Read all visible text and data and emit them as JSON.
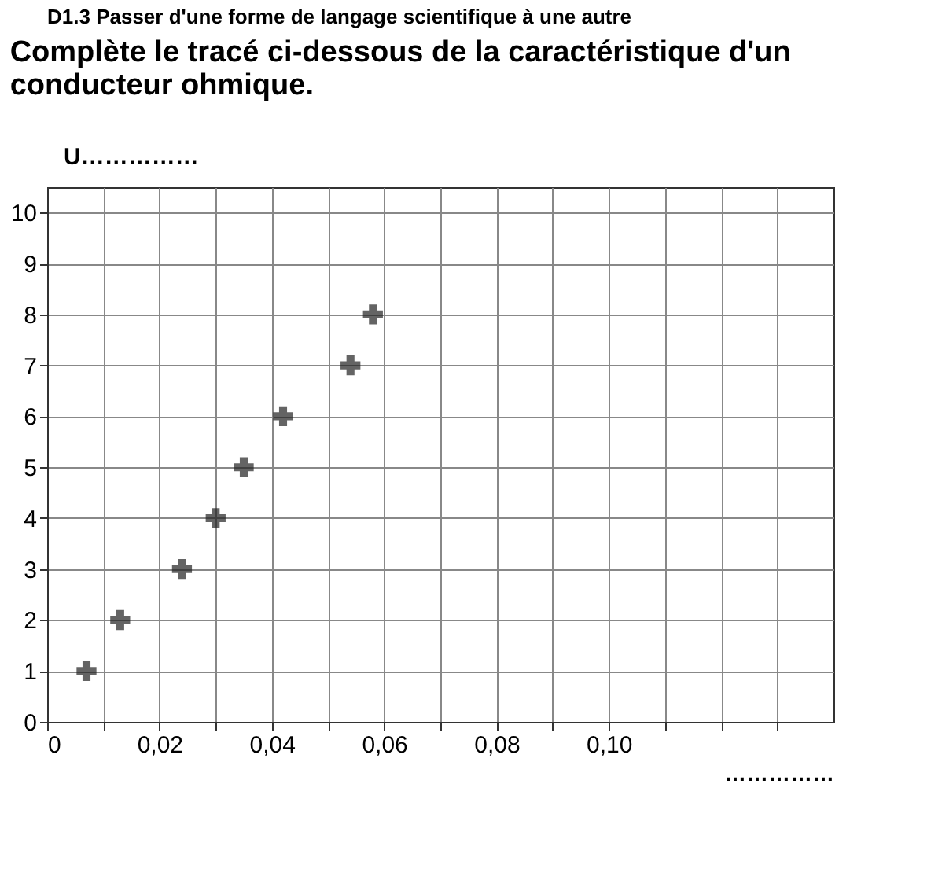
{
  "chart_data": {
    "type": "scatter",
    "title": "Complète le tracé ci-dessous de la caractéristique d'un conducteur ohmique.",
    "annotations": [
      "D1.3 Passer d'une forme de langage scientifique à une autre"
    ],
    "ylabel": "U……………",
    "xlabel": "……………",
    "x": [
      0.007,
      0.013,
      0.024,
      0.03,
      0.035,
      0.042,
      0.054,
      0.058
    ],
    "series": [
      {
        "color": "#222222",
        "values": [
          1,
          2,
          3,
          4,
          5,
          6,
          7,
          8
        ]
      }
    ],
    "xlim": [
      0,
      0.14
    ],
    "ylim": [
      0,
      10.5
    ],
    "xticks": [
      {
        "value": 0,
        "label": "0"
      },
      {
        "value": 0.01,
        "label": null
      },
      {
        "value": 0.02,
        "label": "0,02"
      },
      {
        "value": 0.03,
        "label": null
      },
      {
        "value": 0.04,
        "label": "0,04"
      },
      {
        "value": 0.05,
        "label": null
      },
      {
        "value": 0.06,
        "label": "0,06"
      },
      {
        "value": 0.07,
        "label": null
      },
      {
        "value": 0.08,
        "label": "0,08"
      },
      {
        "value": 0.09,
        "label": null
      },
      {
        "value": 0.1,
        "label": "0,10"
      },
      {
        "value": 0.11,
        "label": null
      },
      {
        "value": 0.12,
        "label": null
      },
      {
        "value": 0.13,
        "label": null
      }
    ],
    "yticks": [
      0,
      1,
      2,
      3,
      4,
      5,
      6,
      7,
      8,
      9,
      10
    ],
    "grid": true,
    "marker": "cross"
  }
}
